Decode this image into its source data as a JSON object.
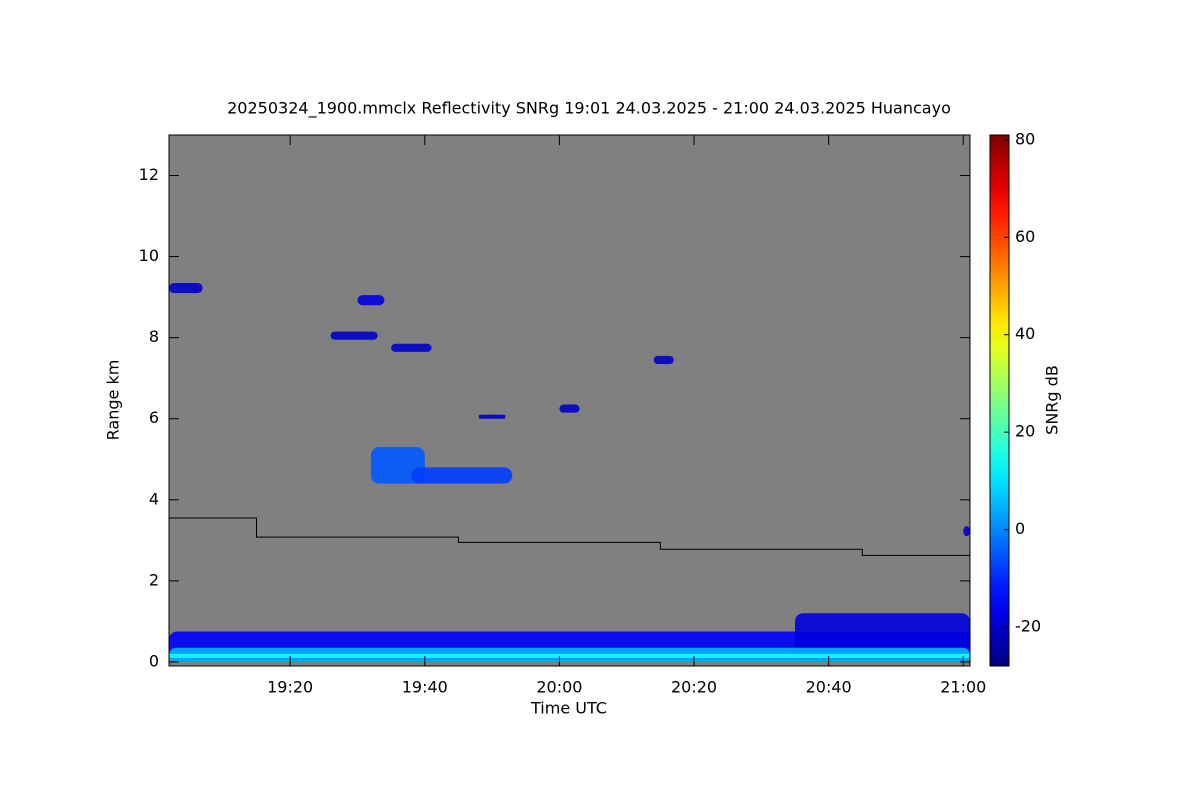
{
  "chart_data": {
    "type": "heatmap",
    "title": "20250324_1900.mmclx Reflectivity SNRg   19:01 24.03.2025 - 21:00 24.03.2025 Huancayo",
    "x_label": "Time UTC",
    "y_label": "Range km",
    "colorbar_label": "SNRg dB",
    "xlim": [
      "19:02",
      "21:01"
    ],
    "xticks": [
      "19:20",
      "19:40",
      "20:00",
      "20:20",
      "20:40",
      "21:00"
    ],
    "ylim": [
      -0.1,
      13
    ],
    "yticks": [
      0,
      2,
      4,
      6,
      8,
      10,
      12
    ],
    "clim": [
      -28,
      81
    ],
    "cticks": [
      -20,
      0,
      20,
      40,
      60,
      80
    ],
    "background_color": "#808080",
    "echoes": [
      {
        "time": [
          "19:02",
          "21:01"
        ],
        "range": [
          0,
          0.75
        ],
        "snr": -15
      },
      {
        "time": [
          "20:35",
          "21:01"
        ],
        "range": [
          0,
          1.2
        ],
        "snr": -18
      },
      {
        "time": [
          "19:02",
          "21:01"
        ],
        "range": [
          0,
          0.35
        ],
        "snr": 5
      },
      {
        "time": [
          "19:02",
          "21:01"
        ],
        "range": [
          0.1,
          0.2
        ],
        "snr": 15
      },
      {
        "time": [
          "19:02",
          "19:07"
        ],
        "range": [
          9.1,
          9.35
        ],
        "snr": -20
      },
      {
        "time": [
          "19:30",
          "19:34"
        ],
        "range": [
          8.8,
          9.05
        ],
        "snr": -18
      },
      {
        "time": [
          "19:26",
          "19:33"
        ],
        "range": [
          7.95,
          8.15
        ],
        "snr": -20
      },
      {
        "time": [
          "19:35",
          "19:41"
        ],
        "range": [
          7.65,
          7.85
        ],
        "snr": -20
      },
      {
        "time": [
          "19:32",
          "19:40"
        ],
        "range": [
          4.4,
          5.3
        ],
        "snr": -5
      },
      {
        "time": [
          "19:38",
          "19:53"
        ],
        "range": [
          4.4,
          4.8
        ],
        "snr": -8
      },
      {
        "time": [
          "19:48",
          "19:52"
        ],
        "range": [
          6.0,
          6.1
        ],
        "snr": -20
      },
      {
        "time": [
          "20:00",
          "20:03"
        ],
        "range": [
          6.15,
          6.35
        ],
        "snr": -20
      },
      {
        "time": [
          "20:14",
          "20:17"
        ],
        "range": [
          7.35,
          7.55
        ],
        "snr": -20
      },
      {
        "time": [
          "21:00",
          "21:01"
        ],
        "range": [
          3.1,
          3.35
        ],
        "snr": -20
      }
    ],
    "series": [
      {
        "color": "#000000",
        "step": "post",
        "x": [
          "19:02",
          "19:15",
          "19:45",
          "20:15",
          "20:45",
          "21:01"
        ],
        "values": [
          3.55,
          3.08,
          2.95,
          2.78,
          2.63,
          2.63
        ]
      }
    ]
  }
}
